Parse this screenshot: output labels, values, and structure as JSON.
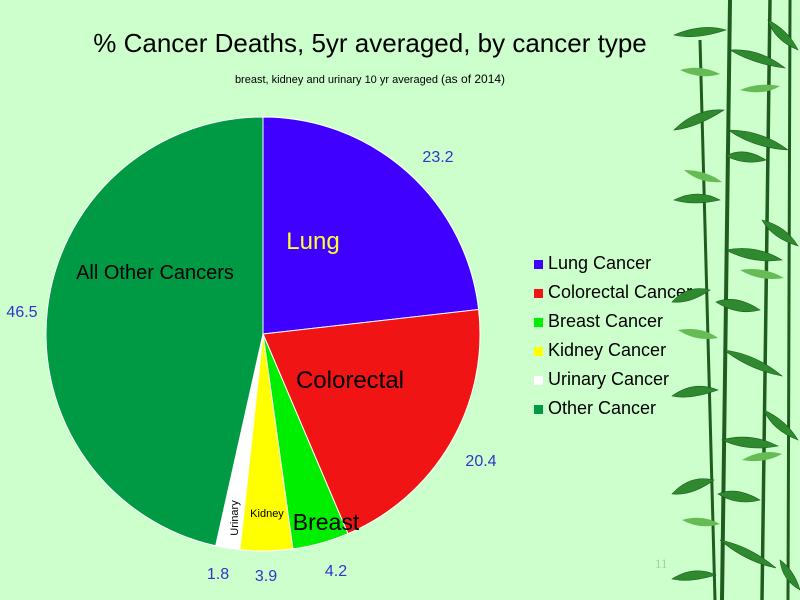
{
  "chart_data": {
    "type": "pie",
    "title": "% Cancer Deaths, 5yr averaged, by cancer type",
    "subtitle": "breast, kidney and urinary 10 yr averaged",
    "subtitle_note": "(as of 2014)",
    "slices": [
      {
        "name": "Lung Cancer",
        "value": 23.2,
        "value_label": "23.2",
        "inner_label": "Lung",
        "color": "#3f00ff"
      },
      {
        "name": "Colorectal Cancer",
        "value": 20.4,
        "value_label": "20.4",
        "inner_label": "Colorectal",
        "color": "#f01414"
      },
      {
        "name": "Breast Cancer",
        "value": 4.2,
        "value_label": "4.2",
        "inner_label": "Breast",
        "color": "#00ee00"
      },
      {
        "name": "Kidney Cancer",
        "value": 3.9,
        "value_label": "3.9",
        "inner_label": "Kidney",
        "color": "#ffff00"
      },
      {
        "name": "Urinary Cancer",
        "value": 1.8,
        "value_label": "1.8",
        "inner_label": "Urinary",
        "color": "#ffffff"
      },
      {
        "name": "Other Cancer",
        "value": 46.5,
        "value_label": "46.5",
        "inner_label": "All Other Cancers",
        "color": "#009944"
      }
    ],
    "start_angle": "12 o'clock",
    "direction": "clockwise",
    "legend_position": "right"
  },
  "page": {
    "slide_number": "11"
  },
  "colors": {
    "background": "#ccffcc",
    "value_label": "#3333cc",
    "lung_inner_label": "#ffff33"
  }
}
